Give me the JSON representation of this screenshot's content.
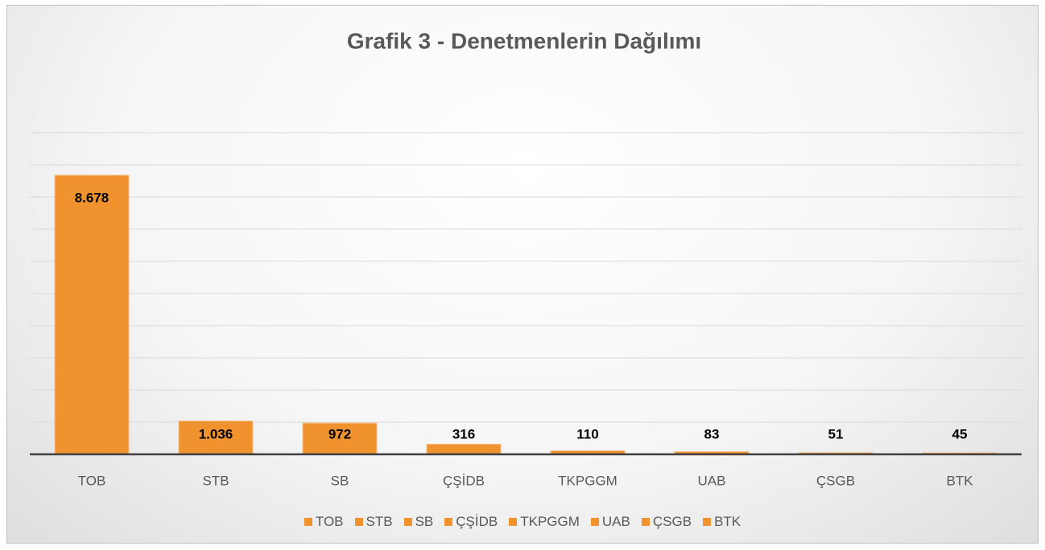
{
  "chart_data": {
    "type": "bar",
    "title": "Grafik 3 - Denetmenlerin Dağılımı",
    "categories": [
      "TOB",
      "STB",
      "SB",
      "ÇŞİDB",
      "TKPGGM",
      "UAB",
      "ÇSGB",
      "BTK"
    ],
    "values": [
      8678,
      1036,
      972,
      316,
      110,
      83,
      51,
      45
    ],
    "value_labels": [
      "8.678",
      "1.036",
      "972",
      "316",
      "110",
      "83",
      "51",
      "45"
    ],
    "color": "#f0922e",
    "ylim": [
      0,
      10000
    ],
    "yticks": [
      0,
      1000,
      2000,
      3000,
      4000,
      5000,
      6000,
      7000,
      8000,
      9000,
      10000
    ],
    "ytick_labels": false,
    "grid": true,
    "legend": "bottom"
  }
}
